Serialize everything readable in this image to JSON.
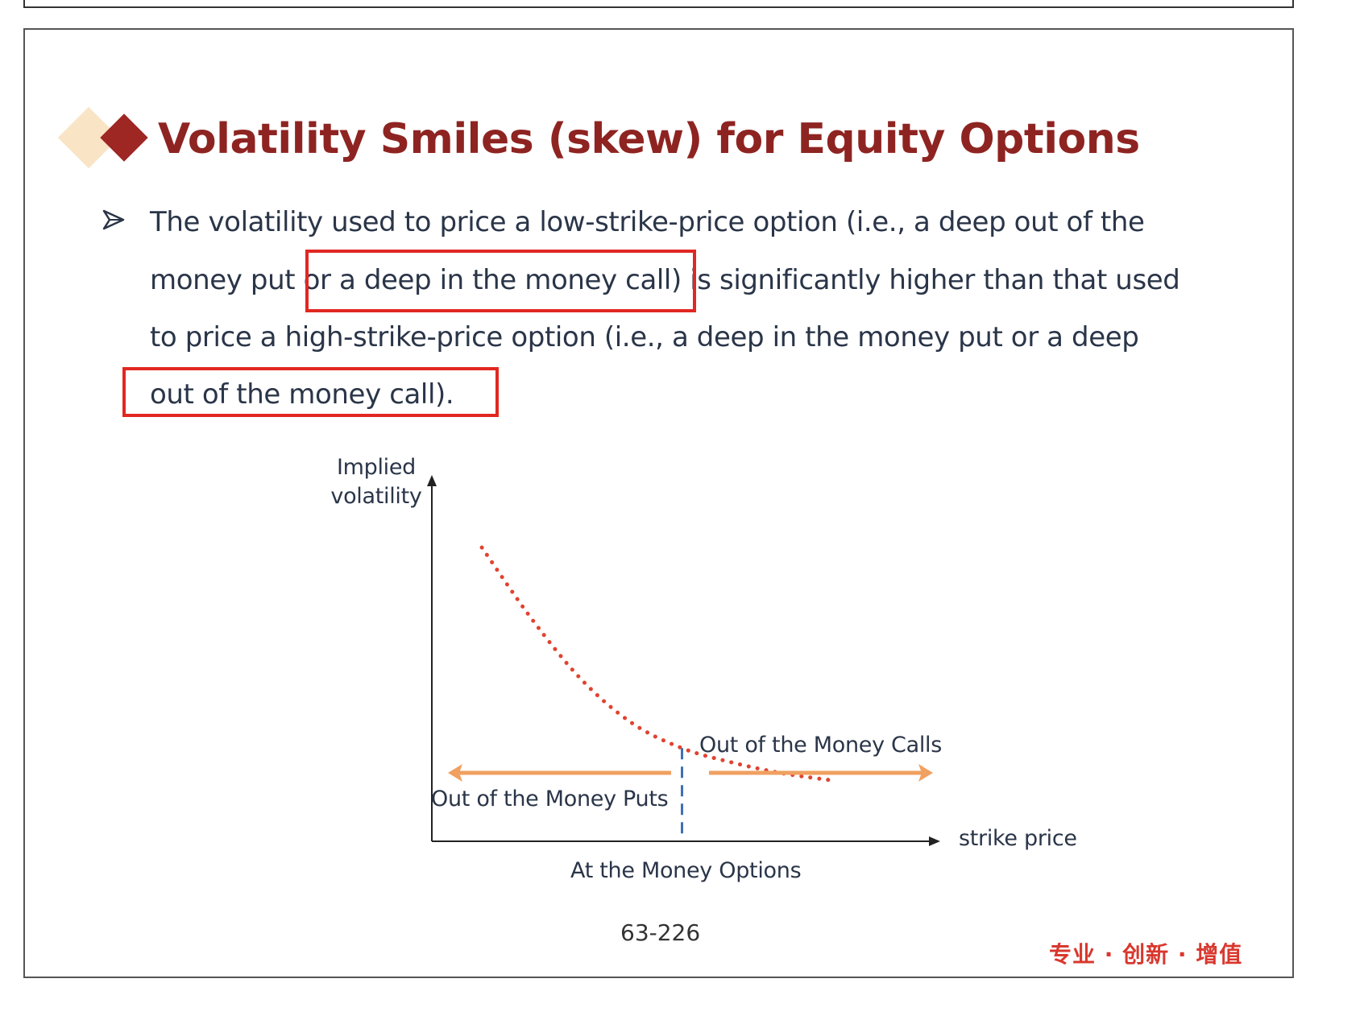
{
  "slide": {
    "title": "Volatility Smiles (skew) for Equity Options",
    "bullet_lines": [
      "The volatility used to price a low-strike-price option (i.e., a deep out of the",
      "money put or a deep in the money call) is significantly higher than that used",
      "to price a high-strike-price option (i.e., a deep in the money put or a deep",
      "out of the money call)."
    ],
    "page_number": "63-226",
    "slogan": "专业 · 创新 · 增值"
  },
  "chart_data": {
    "type": "line",
    "title": "",
    "ylabel_line1": "Implied",
    "ylabel_line2": "volatility",
    "xlabel": "strike price",
    "annotations": {
      "calls": "Out of the Money Calls",
      "puts": "Out of the Money Puts",
      "atm": "At the Money Options"
    },
    "series": [
      {
        "style": "dotted",
        "color": "#e0432f",
        "x": [
          0.1,
          0.2,
          0.3,
          0.4,
          0.5,
          0.6,
          0.7,
          0.8
        ],
        "y": [
          0.82,
          0.62,
          0.45,
          0.33,
          0.26,
          0.22,
          0.19,
          0.17
        ]
      }
    ],
    "atm_x": 0.5,
    "xlim": [
      0,
      1
    ],
    "ylim": [
      0,
      1
    ],
    "colors": {
      "curve": "#e0432f",
      "arrows": "#f0a060",
      "atm_line": "#3e6fb4",
      "axes": "#222222"
    }
  }
}
